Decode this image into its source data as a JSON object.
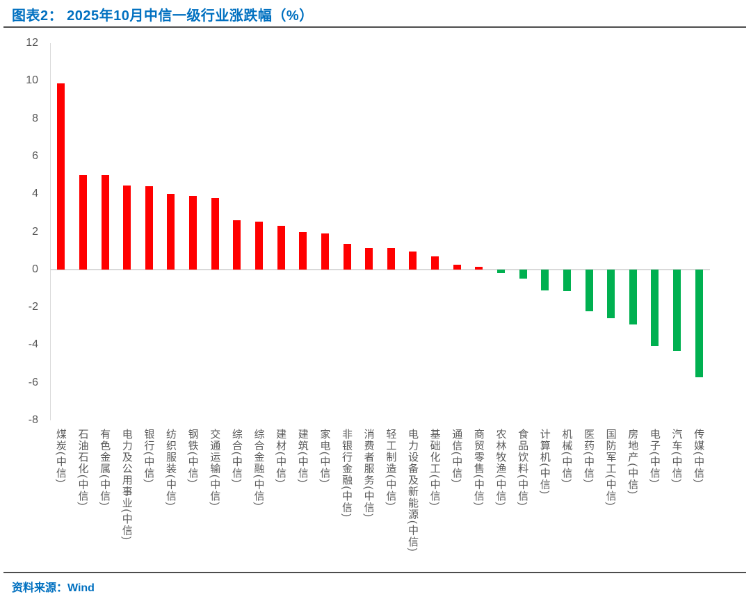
{
  "header": {
    "title": "图表2： 2025年10月中信一级行业涨跌幅（%）"
  },
  "footer": {
    "source_label": "资料来源：Wind"
  },
  "colors": {
    "title_blue": "#0070C0",
    "positive_bar": "#FF0000",
    "negative_bar": "#00B050",
    "axis_line": "#D9D9D9",
    "tick_label": "#595959",
    "divider": "#4d4d4d"
  },
  "chart_data": {
    "type": "bar",
    "title": "2025年10月中信一级行业涨跌幅（%）",
    "xlabel": "",
    "ylabel": "",
    "ylim": [
      -8,
      12
    ],
    "yticks": [
      12,
      10,
      8,
      6,
      4,
      2,
      0,
      -2,
      -4,
      -6,
      -8
    ],
    "grid": false,
    "legend": "none",
    "positive_color": "#FF0000",
    "negative_color": "#00B050",
    "categories": [
      "煤炭(中信)",
      "石油石化(中信)",
      "有色金属(中信)",
      "电力及公用事业(中信)",
      "银行(中信)",
      "纺织服装(中信)",
      "钢铁(中信)",
      "交通运输(中信)",
      "综合(中信)",
      "综合金融(中信)",
      "建材(中信)",
      "建筑(中信)",
      "家电(中信)",
      "非银行金融(中信)",
      "消费者服务(中信)",
      "轻工制造(中信)",
      "电力设备及新能源(中信)",
      "基础化工(中信)",
      "通信(中信)",
      "商贸零售(中信)",
      "农林牧渔(中信)",
      "食品饮料(中信)",
      "计算机(中信)",
      "机械(中信)",
      "医药(中信)",
      "国防军工(中信)",
      "房地产(中信)",
      "电子(中信)",
      "汽车(中信)",
      "传媒(中信)"
    ],
    "values": [
      9.85,
      5.0,
      5.0,
      4.45,
      4.4,
      4.0,
      3.9,
      3.8,
      2.6,
      2.55,
      2.3,
      2.0,
      1.9,
      1.35,
      1.15,
      1.15,
      0.95,
      0.7,
      0.25,
      0.15,
      -0.2,
      -0.5,
      -1.1,
      -1.15,
      -2.2,
      -2.6,
      -2.9,
      -4.05,
      -4.3,
      -5.7
    ]
  }
}
